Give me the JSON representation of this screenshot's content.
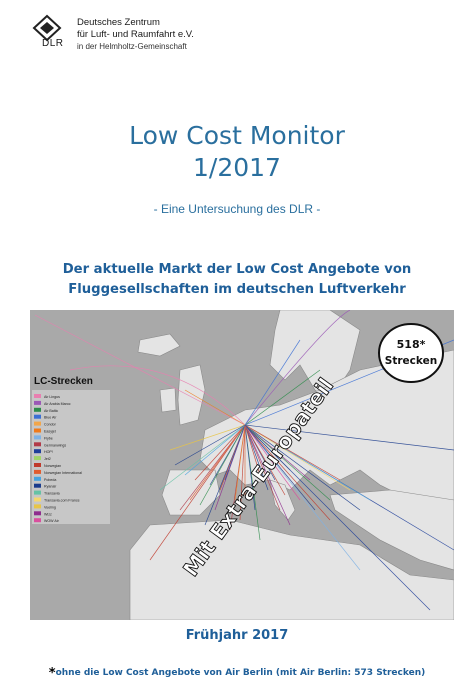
{
  "header": {
    "logo_text": "DLR",
    "org_line1": "Deutsches Zentrum",
    "org_line2": "für Luft- und Raumfahrt e.V.",
    "org_line3": "in der Helmholtz-Gemeinschaft"
  },
  "title": {
    "line1": "Low Cost Monitor",
    "line2": "1/2017"
  },
  "subtitle": "- Eine Untersuchung des DLR -",
  "headline": {
    "line1": "Der aktuelle Markt der Low Cost Angebote von",
    "line2": "Fluggesellschaften im deutschen Luftverkehr"
  },
  "map": {
    "legend_title": "LC-Strecken",
    "legend_items": [
      {
        "label": "Air Lingus",
        "color": "#e87fb0"
      },
      {
        "label": "Air Arabia Maroc",
        "color": "#9b59b6"
      },
      {
        "label": "Air Baltic",
        "color": "#2c8c4a"
      },
      {
        "label": "Blue Air",
        "color": "#3b6fd4"
      },
      {
        "label": "Condor",
        "color": "#f2a64a"
      },
      {
        "label": "Easyjet",
        "color": "#f07a1a"
      },
      {
        "label": "Flybe",
        "color": "#7fb2e5"
      },
      {
        "label": "Germanwings",
        "color": "#b23a48"
      },
      {
        "label": "HOP!",
        "color": "#1f3f9a"
      },
      {
        "label": "Jet2",
        "color": "#a0d468"
      },
      {
        "label": "Norwegian",
        "color": "#c0392b"
      },
      {
        "label": "Norwegian International",
        "color": "#e05c2e"
      },
      {
        "label": "Pobeda",
        "color": "#46a3e0"
      },
      {
        "label": "Ryanair",
        "color": "#1a3b8c"
      },
      {
        "label": "Transavia",
        "color": "#66c2a5"
      },
      {
        "label": "Transavia.com France",
        "color": "#f5d76e"
      },
      {
        "label": "Vueling",
        "color": "#e8c547"
      },
      {
        "label": "Wizz",
        "color": "#8e2d8e"
      },
      {
        "label": "WOW Air",
        "color": "#d94f9e"
      }
    ],
    "badge_line1": "518*",
    "badge_line2": "Strecken",
    "stamp_text": "Mit Extra-Europateil"
  },
  "season": "Frühjahr 2017",
  "footnote": {
    "star": "*",
    "text": "ohne die Low Cost Angebote von Air Berlin (mit Air Berlin: 573 Strecken)"
  }
}
